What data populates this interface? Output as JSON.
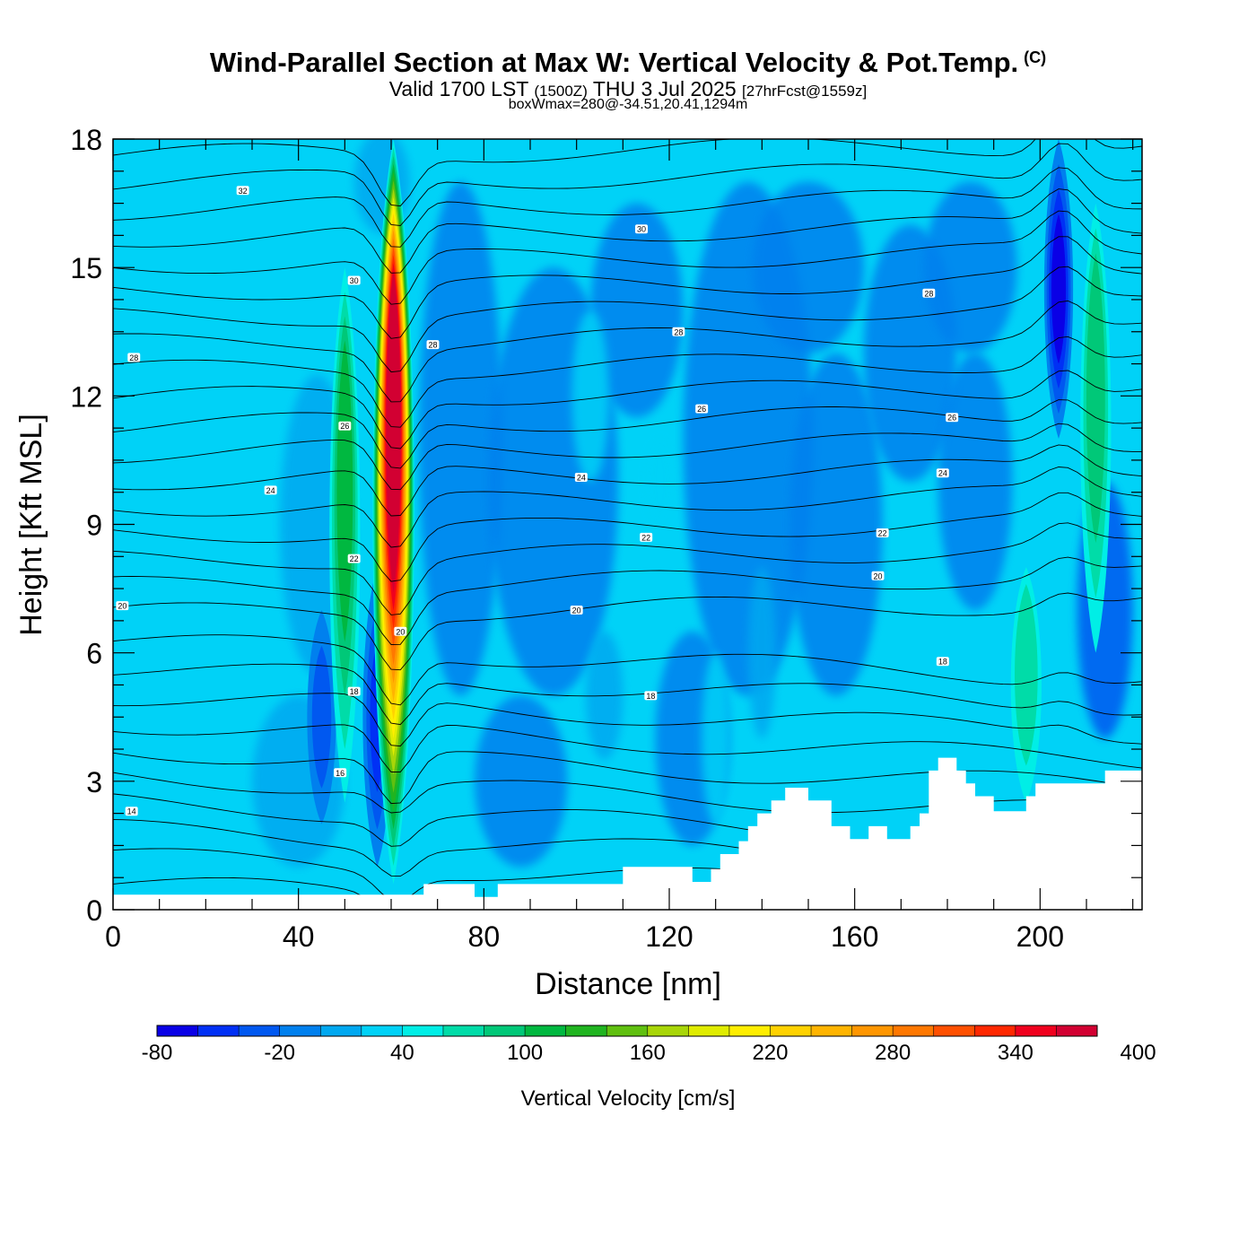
{
  "header": {
    "title": "Wind-Parallel Section at Max W: Vertical Velocity & Pot.Temp.",
    "copyright": "(C)",
    "valid_prefix": "Valid 1700 LST",
    "valid_utc": "(1500Z)",
    "valid_date": "THU 3 Jul 2025",
    "forecast": "[27hrFcst@1559z]",
    "box_info": "boxWmax=280@-34.51,20.41,1294m"
  },
  "chart_data": {
    "type": "heatmap",
    "xlabel": "Distance [nm]",
    "ylabel": "Height [Kft MSL]",
    "xlim": [
      0,
      222
    ],
    "ylim": [
      0,
      18
    ],
    "x_ticks": [
      0,
      40,
      80,
      120,
      160,
      200
    ],
    "y_ticks": [
      0,
      3,
      6,
      9,
      12,
      15,
      18
    ],
    "colorbar": {
      "label": "Vertical Velocity [cm/s]",
      "min": -80,
      "step": 20,
      "tick_values": [
        "-80",
        "-20",
        "40",
        "100",
        "160",
        "220",
        "280",
        "340",
        "400"
      ],
      "colors": [
        "#0a00e6",
        "#0030f5",
        "#0058f0",
        "#0080ee",
        "#00a8f0",
        "#00d2f7",
        "#00eee6",
        "#00dca8",
        "#00c878",
        "#00b840",
        "#20b420",
        "#60c010",
        "#a8d608",
        "#e0ec00",
        "#ffee00",
        "#ffd200",
        "#ffb400",
        "#ff9600",
        "#ff7800",
        "#ff5000",
        "#ff2800",
        "#f0001e",
        "#d20032"
      ]
    },
    "updrafts": [
      {
        "x": 60.5,
        "y_from": 0.6,
        "y_to": 18,
        "peak_cm_s": 440
      },
      {
        "x": 50,
        "y_from": 2.5,
        "y_to": 15,
        "peak_cm_s": 100
      },
      {
        "x": 212,
        "y_from": 6,
        "y_to": 16.5,
        "peak_cm_s": 80
      },
      {
        "x": 197,
        "y_from": 2.5,
        "y_to": 8,
        "peak_cm_s": 70
      }
    ],
    "downdrafts": [
      {
        "x": 204,
        "y_from": 11,
        "y_to": 18,
        "peak_cm_s": -80
      },
      {
        "x": 57,
        "y_from": 1,
        "y_to": 8,
        "peak_cm_s": -40
      },
      {
        "x": 45,
        "y_from": 2,
        "y_to": 7,
        "peak_cm_s": -30
      }
    ],
    "contour_labels": [
      {
        "text": "32",
        "x": 28,
        "y": 16.8
      },
      {
        "text": "30",
        "x": 52,
        "y": 14.7
      },
      {
        "text": "28",
        "x": 4.5,
        "y": 12.9
      },
      {
        "text": "28",
        "x": 69,
        "y": 13.2
      },
      {
        "text": "30",
        "x": 114,
        "y": 15.9
      },
      {
        "text": "28",
        "x": 122,
        "y": 13.5
      },
      {
        "text": "28",
        "x": 176,
        "y": 14.4
      },
      {
        "text": "26",
        "x": 50,
        "y": 11.3
      },
      {
        "text": "26",
        "x": 127,
        "y": 11.7
      },
      {
        "text": "26",
        "x": 181,
        "y": 11.5
      },
      {
        "text": "24",
        "x": 34,
        "y": 9.8
      },
      {
        "text": "24",
        "x": 101,
        "y": 10.1
      },
      {
        "text": "24",
        "x": 179,
        "y": 10.2
      },
      {
        "text": "22",
        "x": 52,
        "y": 8.2
      },
      {
        "text": "22",
        "x": 115,
        "y": 8.7
      },
      {
        "text": "22",
        "x": 166,
        "y": 8.8
      },
      {
        "text": "20",
        "x": 2,
        "y": 7.1
      },
      {
        "text": "20",
        "x": 100,
        "y": 7
      },
      {
        "text": "20",
        "x": 165,
        "y": 7.8
      },
      {
        "text": "20",
        "x": 62,
        "y": 6.5
      },
      {
        "text": "18",
        "x": 52,
        "y": 5.1
      },
      {
        "text": "18",
        "x": 116,
        "y": 5
      },
      {
        "text": "18",
        "x": 179,
        "y": 5.8
      },
      {
        "text": "16",
        "x": 49,
        "y": 3.2
      },
      {
        "text": "14",
        "x": 4,
        "y": 2.3
      }
    ]
  }
}
